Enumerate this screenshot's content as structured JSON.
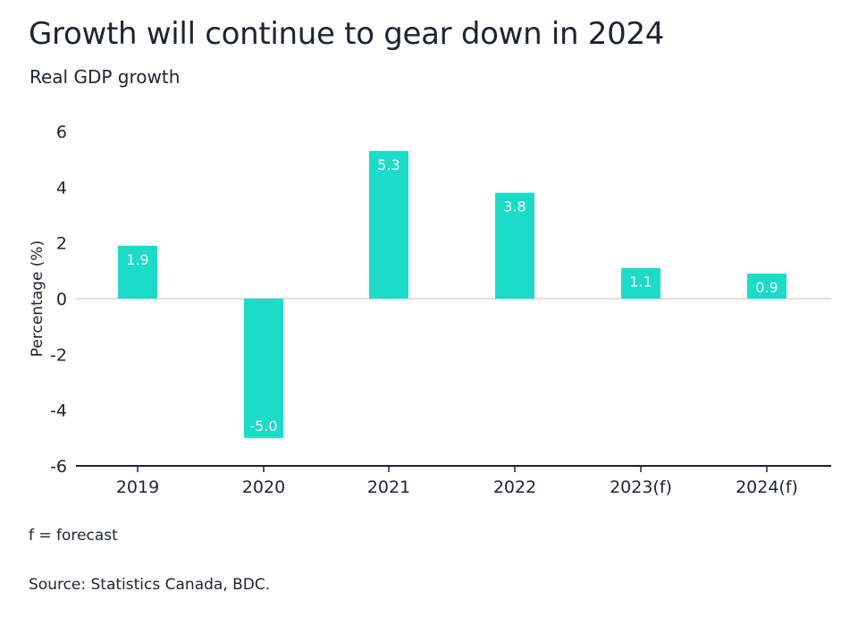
{
  "title": "Growth will continue to gear down in 2024",
  "subtitle": "Real GDP growth",
  "footnote": "f = forecast",
  "source": "Source: Statistics Canada, BDC.",
  "colors": {
    "bar": "#1bdcc8",
    "axis": "#1c2433",
    "zero_line": "#e6cfc6",
    "label": "#ffffff"
  },
  "chart_data": {
    "type": "bar",
    "categories": [
      "2019",
      "2020",
      "2021",
      "2022",
      "2023(f)",
      "2024(f)"
    ],
    "values": [
      1.9,
      -5.0,
      5.3,
      3.8,
      1.1,
      0.9
    ],
    "data_labels": [
      "1.9",
      "-5.0",
      "5.3",
      "3.8",
      "1.1",
      "0.9"
    ],
    "ylabel": "Percentage (%)",
    "ylim": [
      -6,
      6
    ],
    "yticks": [
      6,
      4,
      2,
      0,
      -2,
      -4,
      -6
    ],
    "grid": false,
    "legend": "none"
  }
}
